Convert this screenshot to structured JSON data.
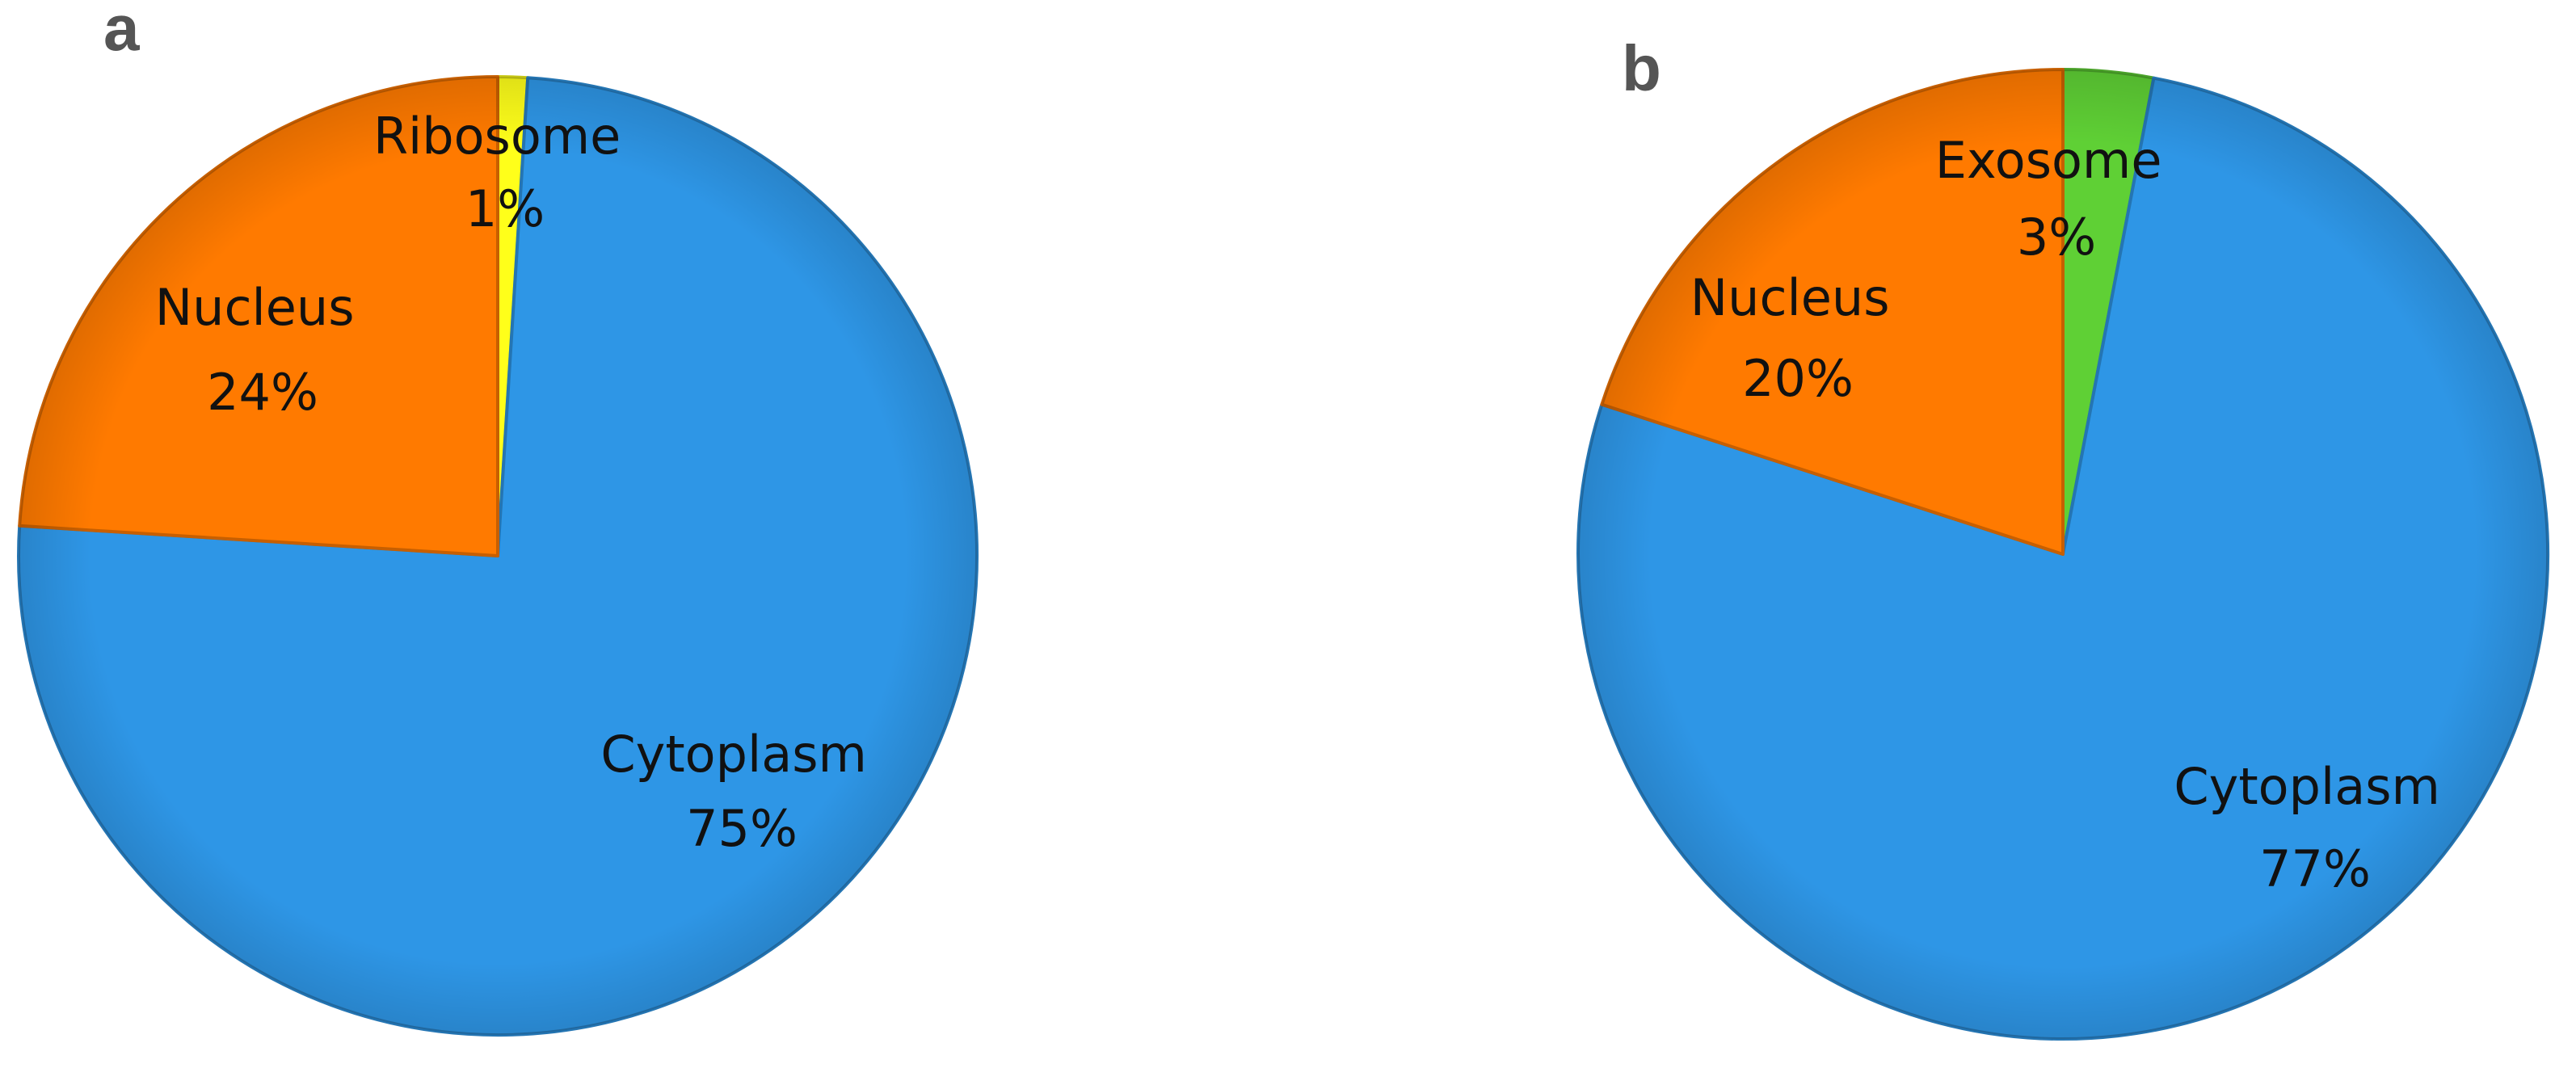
{
  "chart_data": [
    {
      "type": "pie",
      "panel_label": "a",
      "slices": [
        {
          "label": "Ribosome",
          "value": 1,
          "value_label": "1%",
          "color": "#FFFF1A"
        },
        {
          "label": "Cytoplasm",
          "value": 75,
          "value_label": "75%",
          "color": "#2E96E6"
        },
        {
          "label": "Nucleus",
          "value": 24,
          "value_label": "24%",
          "color": "#FF7A00"
        }
      ]
    },
    {
      "type": "pie",
      "panel_label": "b",
      "slices": [
        {
          "label": "Exosome",
          "value": 3,
          "value_label": "3%",
          "color": "#5FD035"
        },
        {
          "label": "Cytoplasm",
          "value": 77,
          "value_label": "77%",
          "color": "#2E96E6"
        },
        {
          "label": "Nucleus",
          "value": 20,
          "value_label": "20%",
          "color": "#FF7A00"
        }
      ]
    }
  ]
}
